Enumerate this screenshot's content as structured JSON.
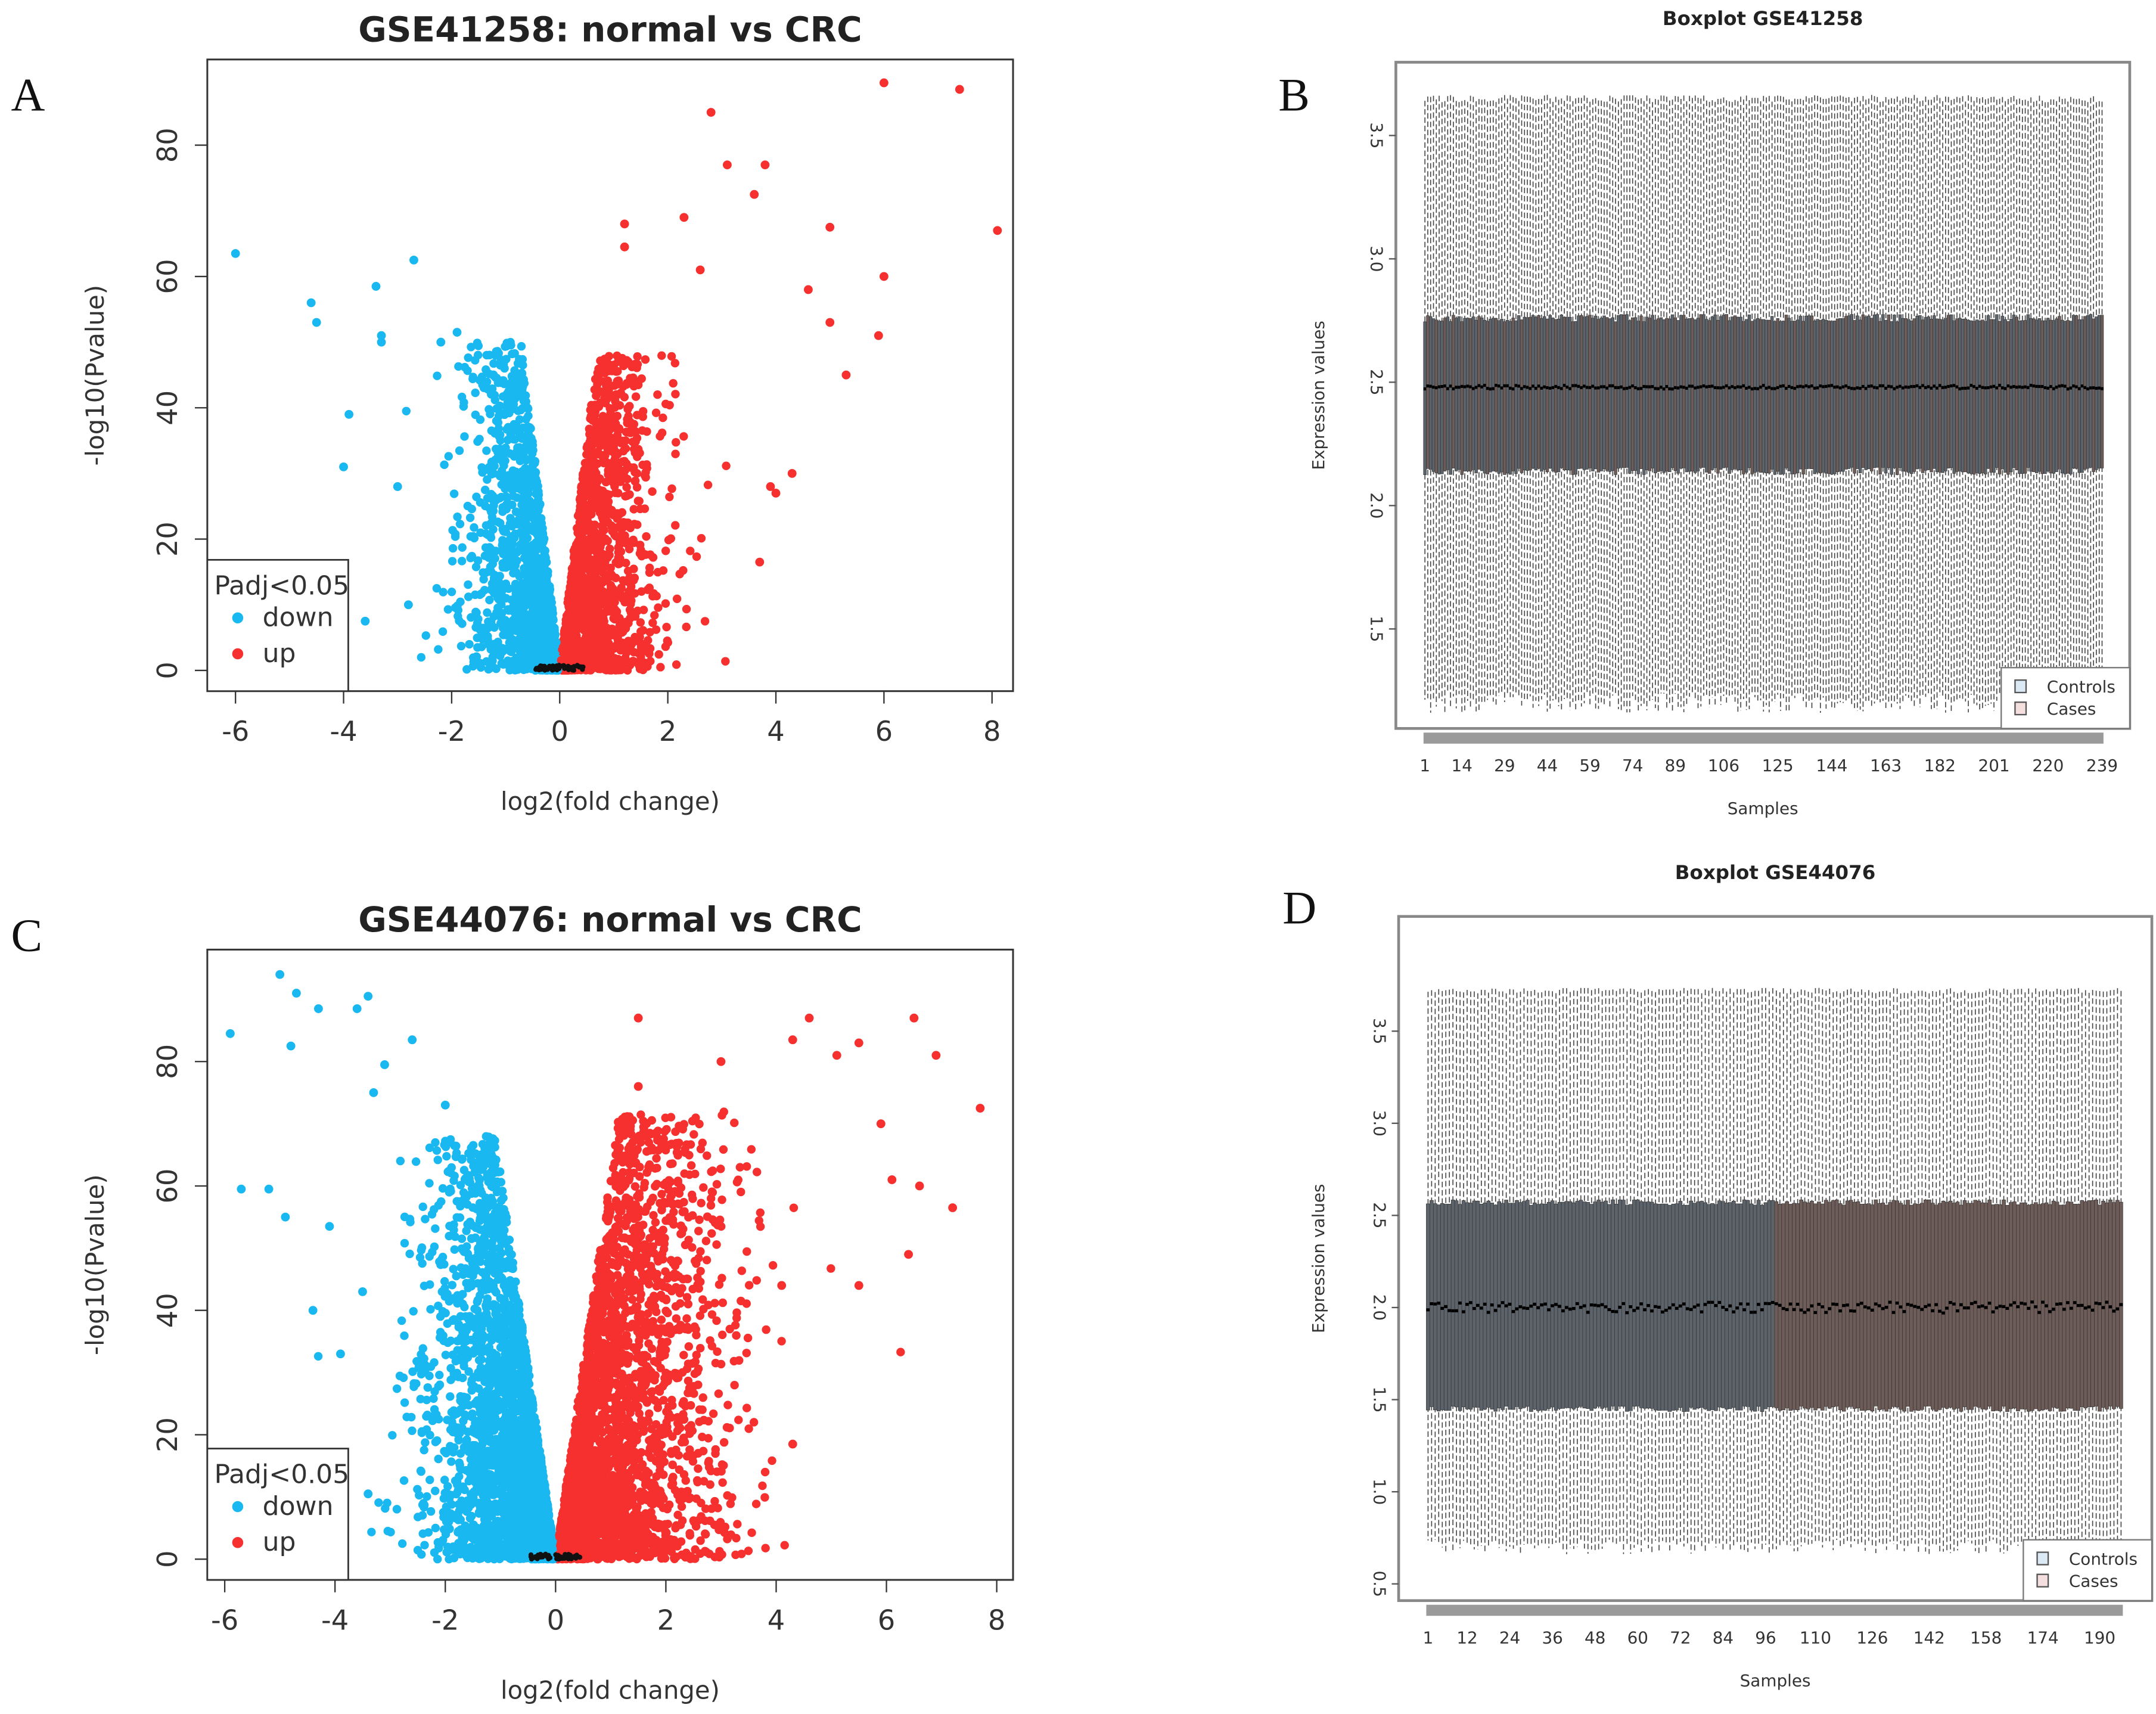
{
  "panels": {
    "a": "A",
    "b": "B",
    "c": "C",
    "d": "D"
  },
  "colors": {
    "down": "#1ab8f0",
    "up": "#f5302e",
    "ns": "#111111",
    "controls_fill": "#5c636a",
    "cases_fill": "#6e5c58",
    "controls_legend": "#dbe9f5",
    "cases_legend": "#f5dede"
  },
  "chart_data": [
    {
      "type": "scatter",
      "title": "GSE41258: normal vs CRC",
      "xlabel": "log2(fold change)",
      "ylabel": "-log10(Pvalue)",
      "xlim": [
        -6.5,
        8.4
      ],
      "ylim": [
        0,
        92
      ],
      "xticks": [
        "-6",
        "-4",
        "-2",
        "0",
        "2",
        "4",
        "6",
        "8"
      ],
      "yticks": [
        "0",
        "20",
        "40",
        "60",
        "80"
      ],
      "legend": {
        "title": "Padj<0.05",
        "entries": [
          "down",
          "up"
        ],
        "position": "bottom-left"
      },
      "series": [
        {
          "name": "down",
          "points": [
            [
              -6,
              63.5
            ],
            [
              -4.6,
              56
            ],
            [
              -4.5,
              53
            ],
            [
              -2.7,
              62.5
            ],
            [
              -3.4,
              58.5
            ],
            [
              -3.3,
              50
            ],
            [
              -3.3,
              51
            ],
            [
              -3.9,
              39
            ],
            [
              -3.6,
              7.5
            ],
            [
              -2.8,
              10
            ],
            [
              -4.0,
              31
            ],
            [
              -3.0,
              28
            ],
            [
              -2.2,
              50
            ],
            [
              -1.9,
              51.5
            ]
          ]
        },
        {
          "name": "up",
          "points": [
            [
              6,
              89.5
            ],
            [
              7.4,
              88.5
            ],
            [
              8.1,
              67
            ],
            [
              2.8,
              85
            ],
            [
              3.1,
              77
            ],
            [
              3.8,
              77
            ],
            [
              3.6,
              72.5
            ],
            [
              5,
              67.5
            ],
            [
              6,
              60
            ],
            [
              5.9,
              51
            ],
            [
              5,
              53
            ],
            [
              4.3,
              30
            ],
            [
              3.7,
              16.5
            ],
            [
              2.3,
              69
            ],
            [
              1.2,
              68
            ],
            [
              1.2,
              64.5
            ],
            [
              4.6,
              58
            ],
            [
              5.3,
              45
            ],
            [
              2.6,
              61
            ],
            [
              3.9,
              28
            ],
            [
              4.0,
              27
            ]
          ]
        }
      ]
    },
    {
      "type": "box",
      "title": "Boxplot GSE41258",
      "xlabel": "Samples",
      "ylabel": "Expression values",
      "n_samples": 239,
      "ylim": [
        1.15,
        3.7
      ],
      "yticks": [
        "1.5",
        "2.0",
        "2.5",
        "3.0",
        "3.5"
      ],
      "xticks": [
        "1",
        "14",
        "29",
        "44",
        "59",
        "74",
        "89",
        "106",
        "125",
        "144",
        "163",
        "182",
        "201",
        "220",
        "239"
      ],
      "legend": {
        "entries": [
          "Controls",
          "Cases"
        ],
        "position": "bottom-right"
      },
      "stats": {
        "whisker_low": 1.2,
        "q1": 2.14,
        "median": 2.48,
        "q3": 2.76,
        "whisker_high": 3.65
      }
    },
    {
      "type": "scatter",
      "title": "GSE44076: normal vs CRC",
      "xlabel": "log2(fold change)",
      "ylabel": "-log10(Pvalue)",
      "xlim": [
        -6.2,
        8.3
      ],
      "ylim": [
        0,
        98
      ],
      "xticks": [
        "-6",
        "-4",
        "-2",
        "0",
        "2",
        "4",
        "6",
        "8"
      ],
      "yticks": [
        "0",
        "20",
        "40",
        "60",
        "80"
      ],
      "legend": {
        "title": "Padj<0.05",
        "entries": [
          "down",
          "up"
        ],
        "position": "bottom-left"
      },
      "series": [
        {
          "name": "down",
          "points": [
            [
              -5.9,
              84.5
            ],
            [
              -5,
              94
            ],
            [
              -4.7,
              91
            ],
            [
              -4.3,
              88.5
            ],
            [
              -3.6,
              88.5
            ],
            [
              -3.4,
              90.5
            ],
            [
              -4.8,
              82.5
            ],
            [
              -2.6,
              83.5
            ],
            [
              -3.1,
              79.5
            ],
            [
              -5.7,
              59.5
            ],
            [
              -5.2,
              59.5
            ],
            [
              -4.9,
              55
            ],
            [
              -4.1,
              53.5
            ],
            [
              -4.4,
              40
            ],
            [
              -3.5,
              43
            ],
            [
              -3.4,
              10.5
            ],
            [
              -3.9,
              33
            ],
            [
              -3.3,
              75
            ],
            [
              -2.0,
              73
            ]
          ]
        },
        {
          "name": "up",
          "points": [
            [
              1.5,
              87
            ],
            [
              6.5,
              87
            ],
            [
              6.9,
              81
            ],
            [
              7.7,
              72.5
            ],
            [
              7.2,
              56.5
            ],
            [
              6.4,
              49
            ],
            [
              4.6,
              87
            ],
            [
              4.3,
              83.5
            ],
            [
              5.5,
              83
            ],
            [
              5.1,
              81
            ],
            [
              3,
              80
            ],
            [
              6.1,
              61
            ],
            [
              6.6,
              60
            ],
            [
              5.9,
              70
            ],
            [
              4.1,
              44
            ],
            [
              4.3,
              18.5
            ],
            [
              5.5,
              44
            ],
            [
              1.5,
              76
            ]
          ]
        }
      ]
    },
    {
      "type": "box",
      "title": "Boxplot GSE44076",
      "xlabel": "Samples",
      "ylabel": "Expression values",
      "n_samples": 196,
      "n_controls": 98,
      "ylim": [
        0.45,
        3.8
      ],
      "yticks": [
        "0.5",
        "1.0",
        "1.5",
        "2.0",
        "2.5",
        "3.0",
        "3.5"
      ],
      "xticks": [
        "1",
        "12",
        "24",
        "36",
        "48",
        "60",
        "72",
        "84",
        "96",
        "110",
        "126",
        "142",
        "158",
        "174",
        "190"
      ],
      "legend": {
        "entries": [
          "Controls",
          "Cases"
        ],
        "position": "bottom-right"
      },
      "stats": {
        "whisker_low": 0.7,
        "q1": 1.45,
        "median": 2.0,
        "q3": 2.57,
        "whisker_high": 3.72
      }
    }
  ]
}
